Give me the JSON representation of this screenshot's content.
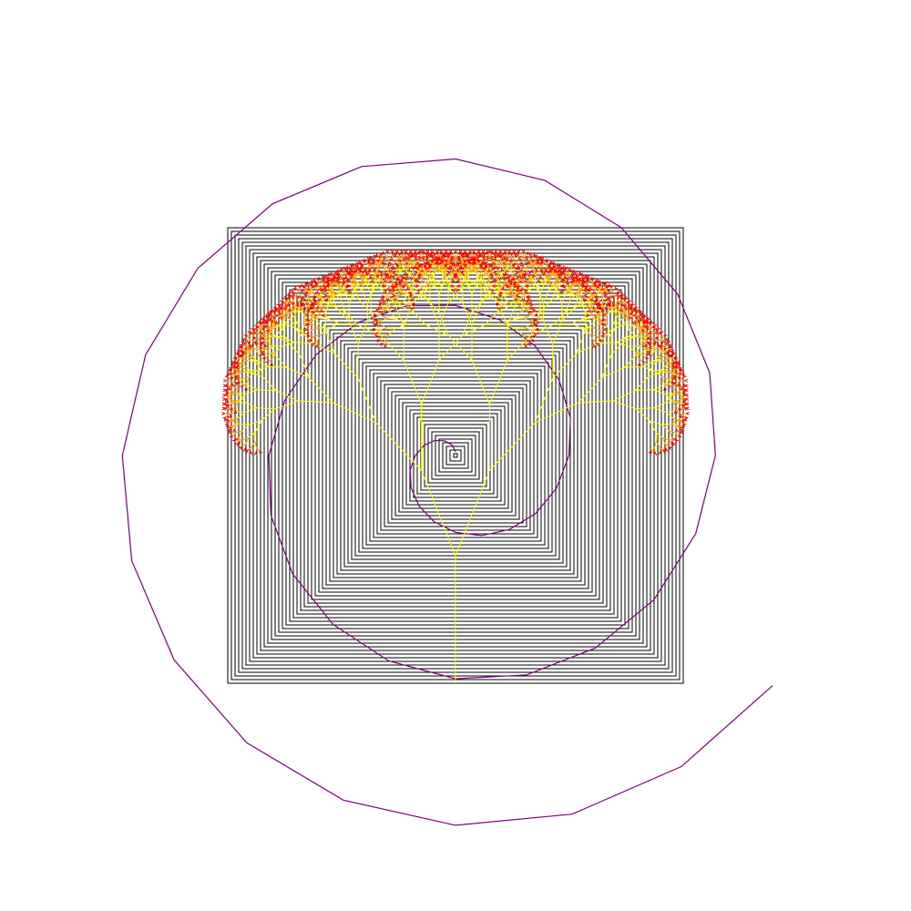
{
  "drawing": {
    "background_color": "#ffffff",
    "square_spiral": {
      "color": "#000000",
      "shape": "nested squares"
    },
    "polygon_spiral": {
      "color": "#800080",
      "shape": "spiral"
    },
    "fractal_tree": {
      "trunk_color": "#ffff00",
      "leaf_colors": [
        "#ffff00",
        "#ffa500",
        "#ff0000"
      ],
      "shape": "binary fractal tree"
    }
  }
}
